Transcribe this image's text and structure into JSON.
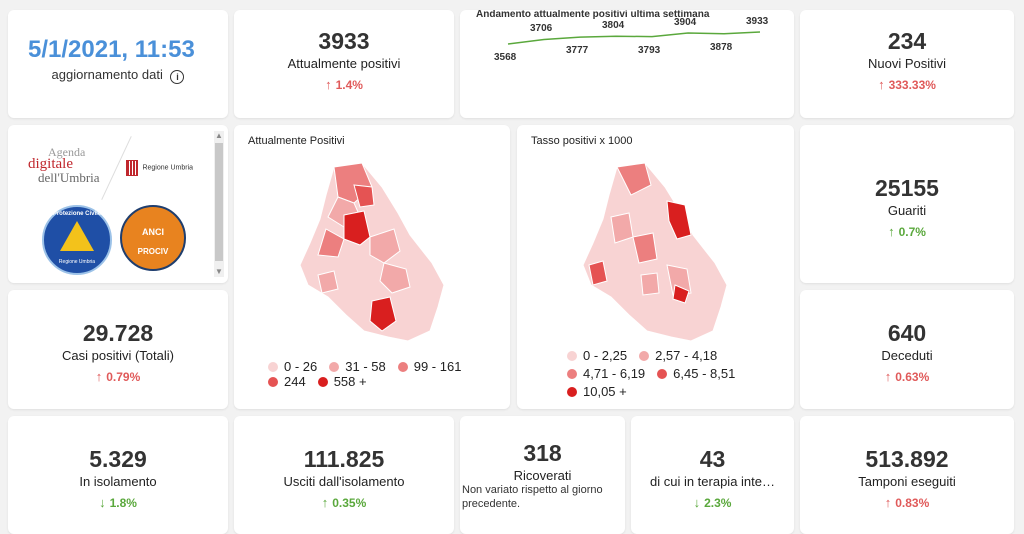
{
  "update": {
    "date": "5/1/2021, 11:53",
    "label": "aggiornamento dati",
    "info_icon": "info-icon"
  },
  "attuali": {
    "value": "3933",
    "label": "Attualmente positivi",
    "change": "1.4%"
  },
  "trend": {
    "title": "Andamento attualmente positivi ultima settimana",
    "values": [
      3568,
      3706,
      3777,
      3804,
      3793,
      3904,
      3878,
      3933
    ]
  },
  "nuovi": {
    "value": "234",
    "label": "Nuovi Positivi",
    "change": "333.33%"
  },
  "logos": {
    "agenda_line1": "Agenda",
    "agenda_line2": "digitale",
    "agenda_line3": "dell'Umbria",
    "regione": "Regione Umbria",
    "protezione": "Protezione Civile",
    "protezione_sub": "Regione Umbria",
    "anci": "ANCI",
    "anci_sub": "PROCIV"
  },
  "map1": {
    "title": "Attualmente Positivi",
    "legend": [
      {
        "label": "0 - 26",
        "color": "#f8d3d3"
      },
      {
        "label": "31 - 58",
        "color": "#f2a9a9"
      },
      {
        "label": "99 - 161",
        "color": "#ec7f7f"
      },
      {
        "label": "244",
        "color": "#e55353"
      },
      {
        "label": "558 +",
        "color": "#d91f1f"
      }
    ]
  },
  "map2": {
    "title": "Tasso positivi x 1000",
    "legend": [
      {
        "label": "0 - 2,25",
        "color": "#f8d3d3"
      },
      {
        "label": "2,57 - 4,18",
        "color": "#f2a9a9"
      },
      {
        "label": "4,71 - 6,19",
        "color": "#ec7f7f"
      },
      {
        "label": "6,45 - 8,51",
        "color": "#e55353"
      },
      {
        "label": "10,05 +",
        "color": "#d91f1f"
      }
    ]
  },
  "guariti": {
    "value": "25155",
    "label": "Guariti",
    "change": "0.7%"
  },
  "totali": {
    "value": "29.728",
    "label": "Casi positivi (Totali)",
    "change": "0.79%"
  },
  "deceduti": {
    "value": "640",
    "label": "Deceduti",
    "change": "0.63%"
  },
  "isolamento": {
    "value": "5.329",
    "label": "In isolamento",
    "change": "1.8%"
  },
  "usciti": {
    "value": "111.825",
    "label": "Usciti dall'isolamento",
    "change": "0.35%"
  },
  "ricoverati": {
    "value": "318",
    "label": "Ricoverati",
    "note": "Non variato rispetto al giorno precedente."
  },
  "terapia": {
    "value": "43",
    "label": "di cui in terapia inte…",
    "change": "2.3%"
  },
  "tamponi": {
    "value": "513.892",
    "label": "Tamponi eseguiti",
    "change": "0.83%"
  },
  "colors": {
    "accent": "#4a90d9",
    "up_red": "#e05a5a",
    "up_green": "#5aa83c",
    "spark": "#5aa83c"
  }
}
